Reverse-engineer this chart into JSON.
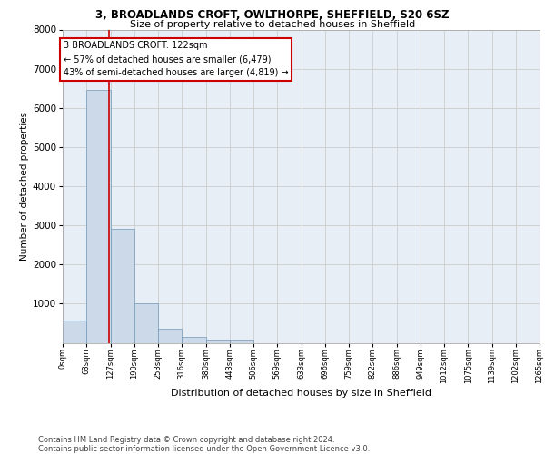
{
  "title_line1": "3, BROADLANDS CROFT, OWLTHORPE, SHEFFIELD, S20 6SZ",
  "title_line2": "Size of property relative to detached houses in Sheffield",
  "xlabel": "Distribution of detached houses by size in Sheffield",
  "ylabel": "Number of detached properties",
  "bar_color": "#ccd9e8",
  "bar_edgecolor": "#7099bb",
  "property_line_x": 122,
  "annotation_text": "3 BROADLANDS CROFT: 122sqm\n← 57% of detached houses are smaller (6,479)\n43% of semi-detached houses are larger (4,819) →",
  "annotation_box_edgecolor": "#cc0000",
  "bin_edges": [
    0,
    63,
    127,
    190,
    253,
    316,
    380,
    443,
    506,
    569,
    633,
    696,
    759,
    822,
    886,
    949,
    1012,
    1075,
    1139,
    1202,
    1265
  ],
  "bar_heights": [
    560,
    6450,
    2900,
    1000,
    370,
    160,
    90,
    80,
    0,
    0,
    0,
    0,
    0,
    0,
    0,
    0,
    0,
    0,
    0,
    0
  ],
  "ylim": [
    0,
    8000
  ],
  "yticks": [
    1000,
    2000,
    3000,
    4000,
    5000,
    6000,
    7000,
    8000
  ],
  "grid_color": "#cccccc",
  "axes_background": "#e8eef6",
  "footer_text": "Contains HM Land Registry data © Crown copyright and database right 2024.\nContains public sector information licensed under the Open Government Licence v3.0.",
  "tick_labels": [
    "0sqm",
    "63sqm",
    "127sqm",
    "190sqm",
    "253sqm",
    "316sqm",
    "380sqm",
    "443sqm",
    "506sqm",
    "569sqm",
    "633sqm",
    "696sqm",
    "759sqm",
    "822sqm",
    "886sqm",
    "949sqm",
    "1012sqm",
    "1075sqm",
    "1139sqm",
    "1202sqm",
    "1265sqm"
  ]
}
